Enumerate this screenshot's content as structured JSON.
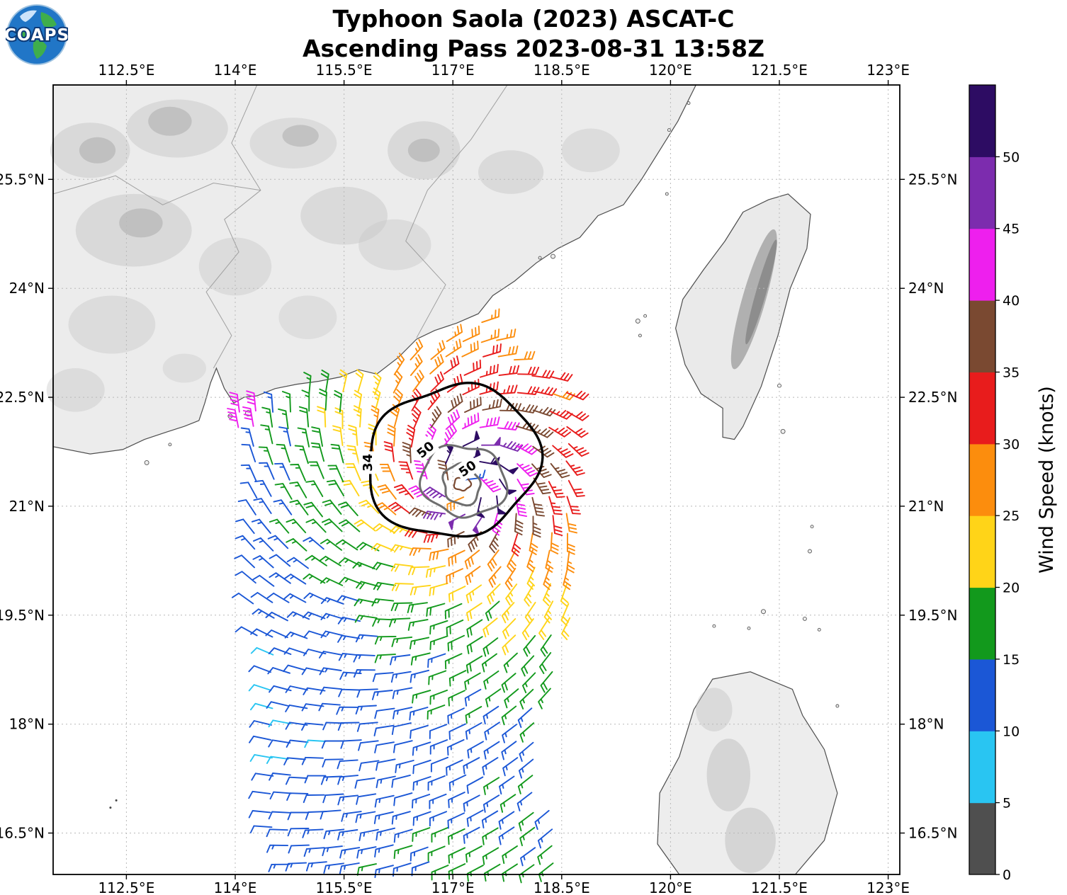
{
  "header": {
    "title_line1": "Typhoon Saola (2023) ASCAT-C",
    "title_line2": "Ascending Pass 2023-08-31 13:58Z",
    "logo_text": "COAPS"
  },
  "axes": {
    "lon_ticks": [
      {
        "value": 112.5,
        "label": "112.5°E"
      },
      {
        "value": 114,
        "label": "114°E"
      },
      {
        "value": 115.5,
        "label": "115.5°E"
      },
      {
        "value": 117,
        "label": "117°E"
      },
      {
        "value": 118.5,
        "label": "118.5°E"
      },
      {
        "value": 120,
        "label": "120°E"
      },
      {
        "value": 121.5,
        "label": "121.5°E"
      },
      {
        "value": 123,
        "label": "123°E"
      }
    ],
    "lat_ticks": [
      {
        "value": 25.5,
        "label": "25.5°N"
      },
      {
        "value": 24,
        "label": "24°N"
      },
      {
        "value": 22.5,
        "label": "22.5°N"
      },
      {
        "value": 21,
        "label": "21°N"
      },
      {
        "value": 19.5,
        "label": "19.5°N"
      },
      {
        "value": 18,
        "label": "18°N"
      },
      {
        "value": 16.5,
        "label": "16.5°N"
      }
    ]
  },
  "colorbar": {
    "label": "Wind Speed (knots)",
    "tick_labels": [
      "0",
      "5",
      "10",
      "15",
      "20",
      "25",
      "30",
      "35",
      "40",
      "45",
      "50"
    ]
  },
  "chart_data": {
    "type": "wind_barb_map",
    "title": "Typhoon Saola (2023) ASCAT-C Ascending Pass 2023-08-31 13:58Z",
    "satellite": "ASCAT-C",
    "pass_type": "Ascending",
    "datetime_utc": "2023-08-31 13:58Z",
    "storm_name": "Saola",
    "storm_year": 2023,
    "wind_speed_units": "knots",
    "lon_range_deg_e": [
      111.49,
      123.16
    ],
    "lat_range_deg_n": [
      15.93,
      26.8
    ],
    "grid_on": true,
    "legend_position": "right-colorbar",
    "storm_center": {
      "lon_e": 117.15,
      "lat_n": 21.3
    },
    "vortex_model": {
      "vmax_kt": 55,
      "rmax_deg": 0.35,
      "decay_exp": 0.55,
      "inflow_deg": 25
    },
    "grid_spacing_deg": 0.24,
    "speed_bins_kt": [
      {
        "min": 0,
        "max": 5,
        "color": "#4f4f4f"
      },
      {
        "min": 5,
        "max": 10,
        "color": "#29c5f2"
      },
      {
        "min": 10,
        "max": 15,
        "color": "#1b57d6"
      },
      {
        "min": 15,
        "max": 20,
        "color": "#12991c"
      },
      {
        "min": 20,
        "max": 25,
        "color": "#ffd418"
      },
      {
        "min": 25,
        "max": 30,
        "color": "#fc8d0d"
      },
      {
        "min": 30,
        "max": 35,
        "color": "#e81c1c"
      },
      {
        "min": 35,
        "max": 40,
        "color": "#7a4931"
      },
      {
        "min": 40,
        "max": 45,
        "color": "#ee1fee"
      },
      {
        "min": 45,
        "max": 50,
        "color": "#7c2cae"
      },
      {
        "min": 50,
        "max": 60,
        "color": "#2d0c63"
      }
    ],
    "contours": [
      {
        "level_kt": 34,
        "color": "#000000",
        "center_lon": 117.0,
        "center_lat": 21.62,
        "radius_deg": 1.08,
        "label": "34",
        "label_lon": 115.82,
        "label_lat": 21.6,
        "label_rot": -90
      },
      {
        "level_kt": 50,
        "color": "#6e6e6e",
        "center_lon": 117.15,
        "center_lat": 21.35,
        "radius_deg": 0.52,
        "label": "50",
        "label_lon": 116.62,
        "label_lat": 21.78,
        "label_rot": -40
      },
      {
        "level_kt": 50,
        "color": "#6e6e6e",
        "center_lon": 117.12,
        "center_lat": 21.3,
        "radius_deg": 0.26,
        "label": "50",
        "label_lon": 117.2,
        "label_lat": 21.52,
        "label_rot": -35
      },
      {
        "level_kt": 35,
        "color": "#7a4931",
        "center_lon": 117.13,
        "center_lat": 21.31,
        "radius_deg": 0.1,
        "label": "",
        "label_lon": 0,
        "label_lat": 0,
        "label_rot": 0
      }
    ],
    "swath_polygon": [
      [
        113.55,
        23.1
      ],
      [
        114.6,
        23.85
      ],
      [
        115.2,
        23.95
      ],
      [
        117.3,
        23.95
      ],
      [
        117.55,
        23.35
      ],
      [
        118.05,
        23.0
      ],
      [
        118.7,
        22.6
      ],
      [
        118.78,
        21.0
      ],
      [
        118.75,
        19.9
      ],
      [
        118.32,
        18.4
      ],
      [
        118.28,
        17.1
      ],
      [
        118.55,
        16.05
      ],
      [
        114.6,
        16.05
      ],
      [
        114.28,
        17.3
      ],
      [
        114.42,
        18.6
      ],
      [
        114.1,
        20.2
      ],
      [
        114.18,
        21.5
      ],
      [
        113.92,
        22.25
      ]
    ]
  }
}
